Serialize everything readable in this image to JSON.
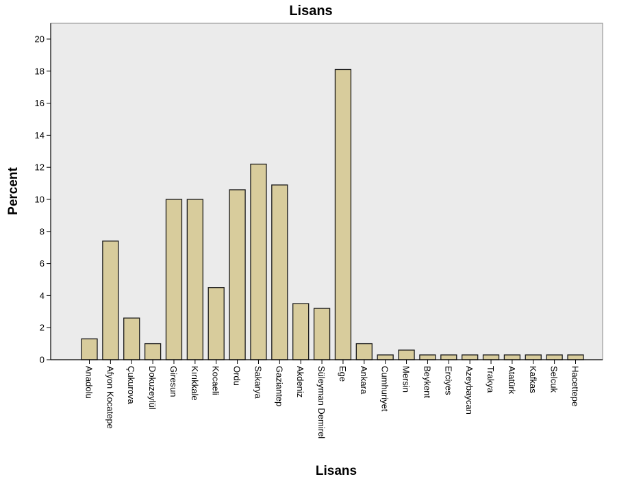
{
  "chart_data": {
    "type": "bar",
    "title": "Lisans",
    "xlabel": "Lisans",
    "ylabel": "Percent",
    "ylim": [
      0,
      21
    ],
    "yticks": [
      0,
      2,
      4,
      6,
      8,
      10,
      12,
      14,
      16,
      18,
      20
    ],
    "grid": false,
    "legend": "none",
    "categories": [
      "Anadolu",
      "Afyon Kocatepe",
      "Çukurova",
      "Dokuzeylül",
      "Giresun",
      "Kırıkkale",
      "Kocaeli",
      "Ordu",
      "Sakarya",
      "Gaziantep",
      "Akdeniz",
      "Süleyman Demirel",
      "Ege",
      "Ankara",
      "Cumhuriyet",
      "Mersin",
      "Beykent",
      "Erciyes",
      "Azeybaycan",
      "Trakya",
      "Atatürk",
      "Kafkas",
      "Selcuk",
      "Hacettepe"
    ],
    "values": [
      1.3,
      7.4,
      2.6,
      1.0,
      10.0,
      10.0,
      4.5,
      10.6,
      12.2,
      10.9,
      3.5,
      3.2,
      18.1,
      1.0,
      0.3,
      0.6,
      0.3,
      0.3,
      0.3,
      0.3,
      0.3,
      0.3,
      0.3,
      0.3
    ],
    "colors": {
      "bar_fill": "#d8cc9c",
      "bar_stroke": "#1a1a1a",
      "plot_bg": "#ebebeb",
      "axis": "#000000"
    }
  }
}
